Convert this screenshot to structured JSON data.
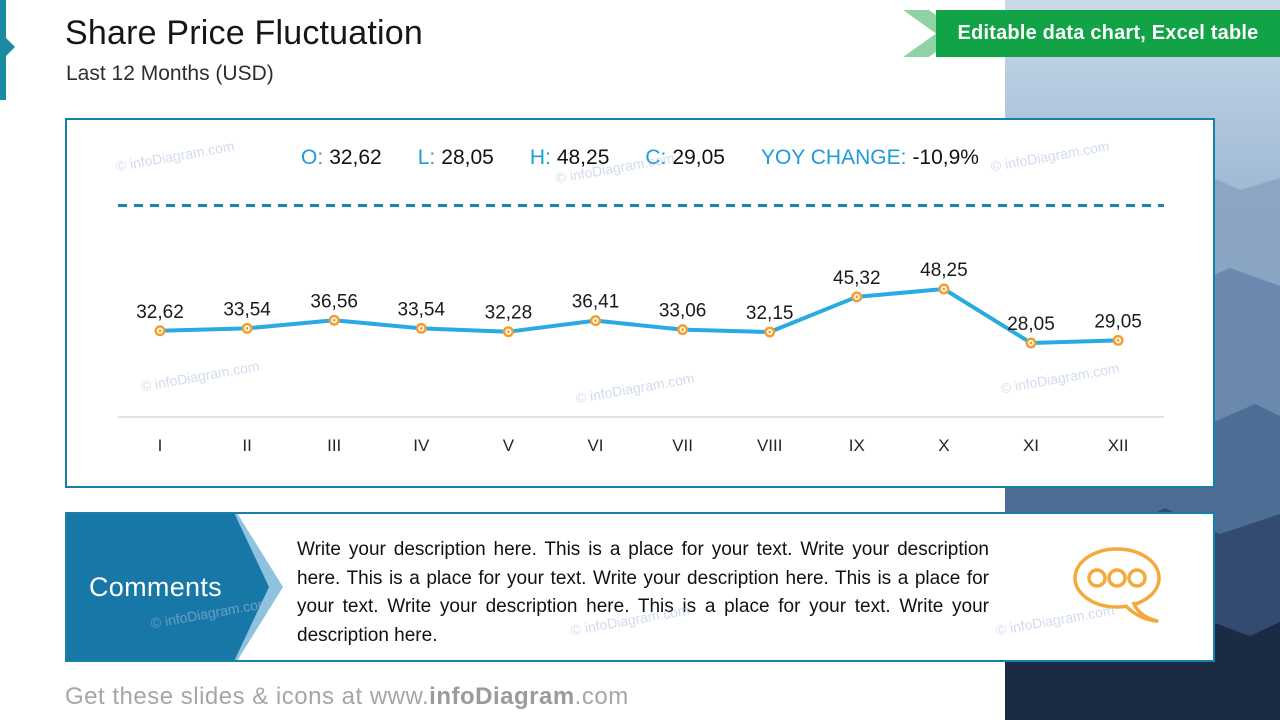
{
  "slide": {
    "title": "Share Price Fluctuation",
    "subtitle": "Last 12 Months (USD)",
    "ribbon_label": "Editable data chart, Excel table",
    "watermark": "© infoDiagram.com",
    "footer": {
      "prefix": "Get these slides & icons at www.",
      "brand": "infoDiagram",
      "suffix": ".com"
    }
  },
  "stats": {
    "items": [
      {
        "label": "O:",
        "value": "32,62"
      },
      {
        "label": "L:",
        "value": "28,05"
      },
      {
        "label": "H:",
        "value": "48,25"
      },
      {
        "label": "C:",
        "value": "29,05"
      },
      {
        "label": "YOY CHANGE:",
        "value": "-10,9%"
      }
    ]
  },
  "comments": {
    "heading": "Comments",
    "body": "Write your description here. This is a place for your text. Write your description here. This is a place for your text. Write your description here. This is a place for your text. Write your description here. This is a place for your text. Write your description here."
  },
  "chart_data": {
    "type": "line",
    "title": "Share Price Fluctuation, Last 12 Months (USD)",
    "categories": [
      "I",
      "II",
      "III",
      "IV",
      "V",
      "VI",
      "VII",
      "VIII",
      "IX",
      "X",
      "XI",
      "XII"
    ],
    "values": [
      32.62,
      33.54,
      36.56,
      33.54,
      32.28,
      36.41,
      33.06,
      32.15,
      45.32,
      48.25,
      28.05,
      29.05
    ],
    "point_labels": [
      "32,62",
      "33,54",
      "36,56",
      "33,54",
      "32,28",
      "36,41",
      "33,06",
      "32,15",
      "45,32",
      "48,25",
      "28,05",
      "29,05"
    ],
    "open": "32,62",
    "low": "28,05",
    "high": "48,25",
    "close": "29,05",
    "yoy_change": "-10,9%",
    "ylim": [
      26,
      52
    ],
    "grid": false,
    "legend": "none",
    "line_color": "#29abe2",
    "marker_color": "#f0a030",
    "axis_color": "#d9d9d9",
    "label_color": "#1a1a1a"
  }
}
